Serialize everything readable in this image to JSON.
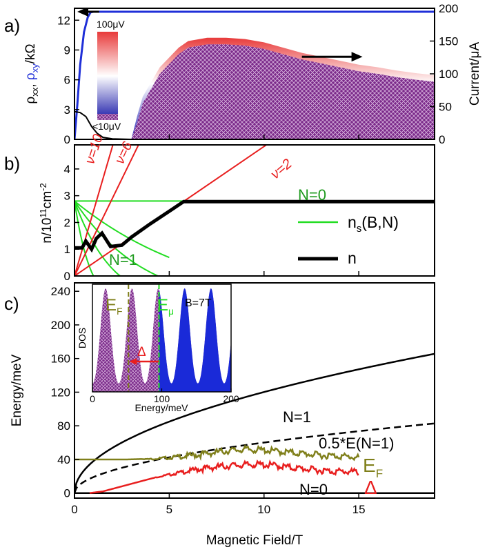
{
  "chart_data": [
    {
      "panel": "a",
      "panel_label": "a)",
      "type": "line",
      "ylabel_left": "ρxx, ρxy/kΩ",
      "ylabel_left_parts": {
        "rho1": "ρ",
        "sub1": "xx",
        "sep": ", ",
        "rho2": "ρ",
        "sub2": "xy",
        "unit": "/kΩ"
      },
      "ylabel_right": "Current/μA",
      "xlim": [
        0,
        19
      ],
      "ylim_left": [
        0,
        13.2
      ],
      "ylim_right": [
        0,
        200
      ],
      "yticks_left": [
        "0",
        "3",
        "6",
        "9",
        "12"
      ],
      "yticks_right": [
        "0",
        "50",
        "100",
        "150",
        "200"
      ],
      "colorbar": {
        "top_label": "100μV",
        "bottom_label": "<10μV",
        "colors": [
          "#e83a3a",
          "#ffffff",
          "#1a1aa8"
        ]
      },
      "series": [
        {
          "color": "#1f2fd8",
          "x": [
            0,
            0.15,
            0.3,
            0.5,
            0.7,
            0.85,
            1.0,
            2,
            5,
            10,
            15,
            19
          ],
          "y": [
            0,
            3.5,
            7.5,
            10.8,
            12.3,
            12.8,
            12.85,
            12.85,
            12.85,
            12.85,
            12.85,
            12.85
          ]
        },
        {
          "color": "#000000",
          "x": [
            0,
            0.3,
            0.6,
            0.9,
            1.2,
            1.5,
            2.0,
            3,
            19
          ],
          "y": [
            2.8,
            2.7,
            2.3,
            1.3,
            0.6,
            0.2,
            0.05,
            0,
            0
          ]
        },
        {
          "color": "#7b2a8a",
          "type": "area",
          "axis": "right",
          "x": [
            3.0,
            3.3,
            3.6,
            4.0,
            4.5,
            5.0,
            5.5,
            6.0,
            7.0,
            8.0,
            9.0,
            10.0,
            11.0,
            12.0,
            13.0,
            14.0,
            15.0,
            16.0,
            17.0,
            18.0,
            19.0
          ],
          "y": [
            0,
            25,
            55,
            75,
            100,
            115,
            130,
            140,
            145,
            145,
            143,
            138,
            130,
            122,
            116,
            110,
            104,
            100,
            95,
            91,
            88
          ]
        }
      ],
      "arrows": [
        {
          "axis": "left",
          "x_from": 1.3,
          "x_to": 0,
          "y": 12.85
        },
        {
          "axis": "right",
          "x_from": 12,
          "x_to": 15.2,
          "y": 126
        }
      ]
    },
    {
      "panel": "b",
      "panel_label": "b)",
      "type": "line",
      "ylabel": "n/10¹¹cm⁻²",
      "ylabel_parts": {
        "base": "n/10",
        "exp1": "11",
        "mid": "cm",
        "exp2": "-2"
      },
      "xlim": [
        0,
        19
      ],
      "ylim": [
        0,
        4.9
      ],
      "yticks": [
        "0",
        "1",
        "2",
        "3",
        "4"
      ],
      "lines_nu": [
        {
          "label": "ν=10",
          "slope": 2.42
        },
        {
          "label": "ν=6",
          "slope": 1.451
        },
        {
          "label": "ν=2",
          "slope": 0.484
        }
      ],
      "ns_curves": {
        "n0": 2.8,
        "limit_levels": [
          1,
          2,
          3
        ]
      },
      "n_curve": {
        "x": [
          0,
          0.4,
          0.6,
          0.9,
          1.15,
          1.45,
          1.9,
          2.5,
          3.0,
          4.0,
          5.0,
          5.76,
          19
        ],
        "y": [
          1.05,
          1.05,
          1.3,
          1.0,
          1.4,
          1.6,
          1.1,
          1.15,
          1.45,
          1.95,
          2.42,
          2.78,
          2.78
        ]
      },
      "annotations": {
        "n0": "N=0",
        "n1": "N=1"
      },
      "legend": [
        {
          "label": "n",
          "sub": "s",
          "rest": "(B,N)",
          "color": "#22dd22"
        },
        {
          "label": "n",
          "color": "#000000"
        }
      ]
    },
    {
      "panel": "c",
      "panel_label": "c)",
      "type": "line",
      "xlabel": "Magnetic Field/T",
      "ylabel": "Energy/meV",
      "xlim": [
        0,
        19
      ],
      "ylim": [
        -6,
        250
      ],
      "xticks": [
        "0",
        "5",
        "10",
        "15"
      ],
      "yticks": [
        "0",
        "40",
        "80",
        "120",
        "160",
        "200",
        "240"
      ],
      "curves": {
        "landau_prefactor": 38.0
      },
      "ef_curve": {
        "x": [
          0,
          2.8,
          4,
          5,
          6,
          7,
          8,
          9,
          10,
          11,
          12,
          13,
          14,
          15
        ],
        "y": [
          40,
          40,
          40.8,
          43,
          46,
          49,
          52,
          54,
          53,
          51,
          49,
          47,
          46,
          44
        ]
      },
      "delta_curve": {
        "x": [
          0.8,
          1.5,
          2.5,
          3.5,
          4.5,
          5.5,
          6.5,
          7.5,
          8.5,
          9.5,
          10.5,
          11.5,
          12.5,
          13.5,
          15
        ],
        "y": [
          0,
          2,
          8,
          14,
          20,
          25,
          30,
          33,
          35,
          36,
          35,
          32,
          30,
          28,
          27
        ]
      },
      "annotations": {
        "n1": "N=1",
        "half": "0.5*E(N=1)",
        "n0": "N=0",
        "ef": "E",
        "ef_sub": "F",
        "delta": "Δ"
      },
      "inset": {
        "type": "area",
        "xlabel": "Energy/meV",
        "ylabel": "DOS",
        "xlim": [
          0,
          200
        ],
        "xticks": [
          "0",
          "100",
          "200"
        ],
        "field_label": "B=7T",
        "ef_label": "E",
        "ef_sub": "F",
        "emu_label": "E",
        "emu_sub": "μ",
        "delta_label": "Δ",
        "ef_value": 52,
        "emu_value": 96,
        "hbar_omega": 38,
        "level_offset": 19
      }
    }
  ]
}
